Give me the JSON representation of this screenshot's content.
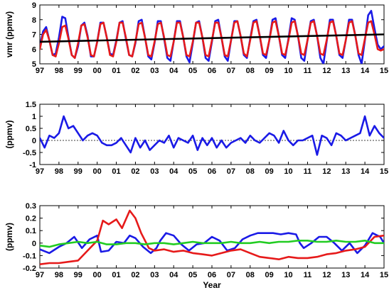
{
  "chart_data": [
    {
      "type": "line",
      "ylabel": "vmr (ppmv)",
      "xlabel": "",
      "xlim": [
        1997,
        2015
      ],
      "ylim": [
        5,
        9
      ],
      "yticks": [
        5,
        6,
        7,
        8,
        9
      ],
      "grid": false,
      "x_tick_labels": [
        "97",
        "98",
        "99",
        "00",
        "01",
        "02",
        "03",
        "04",
        "05",
        "06",
        "07",
        "08",
        "09",
        "10",
        "11",
        "12",
        "13",
        "14",
        "15"
      ],
      "series": [
        {
          "color": "#1a1ae6",
          "x": [
            1997.0,
            1997.17,
            1997.33,
            1997.5,
            1997.67,
            1997.83,
            1998.0,
            1998.17,
            1998.33,
            1998.5,
            1998.67,
            1998.83,
            1999.0,
            1999.17,
            1999.33,
            1999.5,
            1999.67,
            1999.83,
            2000.0,
            2000.17,
            2000.33,
            2000.5,
            2000.67,
            2000.83,
            2001.0,
            2001.17,
            2001.33,
            2001.5,
            2001.67,
            2001.83,
            2002.0,
            2002.17,
            2002.33,
            2002.5,
            2002.67,
            2002.83,
            2003.0,
            2003.17,
            2003.33,
            2003.5,
            2003.67,
            2003.83,
            2004.0,
            2004.17,
            2004.33,
            2004.5,
            2004.67,
            2004.83,
            2005.0,
            2005.17,
            2005.33,
            2005.5,
            2005.67,
            2005.83,
            2006.0,
            2006.17,
            2006.33,
            2006.5,
            2006.67,
            2006.83,
            2007.0,
            2007.17,
            2007.33,
            2007.5,
            2007.67,
            2007.83,
            2008.0,
            2008.17,
            2008.33,
            2008.5,
            2008.67,
            2008.83,
            2009.0,
            2009.17,
            2009.33,
            2009.5,
            2009.67,
            2009.83,
            2010.0,
            2010.17,
            2010.33,
            2010.5,
            2010.67,
            2010.83,
            2011.0,
            2011.17,
            2011.33,
            2011.5,
            2011.67,
            2011.83,
            2012.0,
            2012.17,
            2012.33,
            2012.5,
            2012.67,
            2012.83,
            2013.0,
            2013.17,
            2013.33,
            2013.5,
            2013.67,
            2013.83,
            2014.0,
            2014.17,
            2014.33,
            2014.5,
            2014.67,
            2014.83,
            2015.0
          ],
          "values": [
            6.2,
            7.2,
            7.5,
            6.6,
            5.6,
            5.7,
            6.8,
            8.2,
            8.1,
            6.8,
            5.6,
            5.4,
            6.2,
            7.6,
            7.8,
            6.9,
            5.5,
            5.5,
            6.5,
            7.8,
            7.8,
            6.8,
            5.7,
            5.6,
            6.6,
            7.8,
            7.9,
            6.7,
            5.6,
            5.5,
            6.4,
            7.9,
            8.0,
            6.8,
            5.5,
            5.3,
            6.4,
            7.9,
            7.9,
            6.7,
            5.4,
            5.2,
            6.5,
            7.9,
            7.9,
            6.8,
            5.5,
            5.1,
            6.4,
            7.8,
            7.9,
            6.8,
            5.4,
            5.2,
            6.5,
            7.9,
            8.0,
            6.8,
            5.5,
            5.2,
            6.6,
            7.9,
            7.9,
            6.9,
            5.6,
            5.4,
            6.7,
            7.9,
            8.0,
            6.9,
            5.6,
            5.4,
            6.6,
            8.0,
            8.1,
            6.9,
            5.6,
            5.4,
            6.7,
            8.1,
            8.0,
            6.9,
            5.4,
            5.2,
            6.6,
            7.9,
            8.0,
            6.9,
            5.4,
            5.0,
            6.5,
            8.0,
            8.0,
            6.9,
            5.6,
            5.4,
            6.6,
            8.0,
            8.0,
            6.9,
            5.6,
            5.0,
            6.6,
            8.3,
            8.6,
            7.4,
            6.3,
            6.0,
            6.2
          ]
        },
        {
          "color": "#e61a1a",
          "x": [
            1997.0,
            1997.17,
            1997.33,
            1997.5,
            1997.67,
            1997.83,
            1998.0,
            1998.17,
            1998.33,
            1998.5,
            1998.67,
            1998.83,
            1999.0,
            1999.17,
            1999.33,
            1999.5,
            1999.67,
            1999.83,
            2000.0,
            2000.17,
            2000.33,
            2000.5,
            2000.67,
            2000.83,
            2001.0,
            2001.17,
            2001.33,
            2001.5,
            2001.67,
            2001.83,
            2002.0,
            2002.17,
            2002.33,
            2002.5,
            2002.67,
            2002.83,
            2003.0,
            2003.17,
            2003.33,
            2003.5,
            2003.67,
            2003.83,
            2004.0,
            2004.17,
            2004.33,
            2004.5,
            2004.67,
            2004.83,
            2005.0,
            2005.17,
            2005.33,
            2005.5,
            2005.67,
            2005.83,
            2006.0,
            2006.17,
            2006.33,
            2006.5,
            2006.67,
            2006.83,
            2007.0,
            2007.17,
            2007.33,
            2007.5,
            2007.67,
            2007.83,
            2008.0,
            2008.17,
            2008.33,
            2008.5,
            2008.67,
            2008.83,
            2009.0,
            2009.17,
            2009.33,
            2009.5,
            2009.67,
            2009.83,
            2010.0,
            2010.17,
            2010.33,
            2010.5,
            2010.67,
            2010.83,
            2011.0,
            2011.17,
            2011.33,
            2011.5,
            2011.67,
            2011.83,
            2012.0,
            2012.17,
            2012.33,
            2012.5,
            2012.67,
            2012.83,
            2013.0,
            2013.17,
            2013.33,
            2013.5,
            2013.67,
            2013.83,
            2014.0,
            2014.17,
            2014.33,
            2014.5,
            2014.67,
            2014.83,
            2015.0
          ],
          "values": [
            6.0,
            7.0,
            7.3,
            6.6,
            5.6,
            5.5,
            6.4,
            7.5,
            7.6,
            6.7,
            5.6,
            5.4,
            6.4,
            7.6,
            7.7,
            6.8,
            5.6,
            5.5,
            6.5,
            7.7,
            7.8,
            6.8,
            5.6,
            5.5,
            6.5,
            7.8,
            7.8,
            6.8,
            5.6,
            5.5,
            6.5,
            7.7,
            7.8,
            6.8,
            5.6,
            5.5,
            6.5,
            7.7,
            7.8,
            6.8,
            5.6,
            5.5,
            6.5,
            7.8,
            7.8,
            6.8,
            5.6,
            5.5,
            6.5,
            7.8,
            7.8,
            6.8,
            5.6,
            5.5,
            6.6,
            7.8,
            7.8,
            6.8,
            5.6,
            5.5,
            6.6,
            7.8,
            7.9,
            6.9,
            5.7,
            5.5,
            6.6,
            7.8,
            7.9,
            6.9,
            5.7,
            5.6,
            6.6,
            7.8,
            7.9,
            6.9,
            5.7,
            5.6,
            6.6,
            7.8,
            7.9,
            6.9,
            5.7,
            5.6,
            6.6,
            7.8,
            7.9,
            6.9,
            5.7,
            5.6,
            6.6,
            7.8,
            7.9,
            6.9,
            5.7,
            5.6,
            6.6,
            7.8,
            7.9,
            6.9,
            5.7,
            5.6,
            6.7,
            7.8,
            7.9,
            7.0,
            6.0,
            5.9,
            6.0
          ]
        },
        {
          "color": "#000000",
          "x": [
            1997,
            2015
          ],
          "values": [
            6.5,
            7.0
          ]
        }
      ]
    },
    {
      "type": "line",
      "ylabel": "(ppmv)",
      "xlabel": "",
      "xlim": [
        1997,
        2015
      ],
      "ylim": [
        -1,
        1.5
      ],
      "yticks": [
        -1,
        -0.5,
        0,
        0.5,
        1,
        1.5
      ],
      "grid": false,
      "x_tick_labels": [
        "97",
        "98",
        "99",
        "00",
        "01",
        "02",
        "03",
        "04",
        "05",
        "06",
        "07",
        "08",
        "09",
        "10",
        "11",
        "12",
        "13",
        "14",
        "15"
      ],
      "zero_line": true,
      "series": [
        {
          "color": "#1a1ae6",
          "x": [
            1997.0,
            1997.25,
            1997.5,
            1997.75,
            1998.0,
            1998.25,
            1998.5,
            1998.75,
            1999.0,
            1999.25,
            1999.5,
            1999.75,
            2000.0,
            2000.25,
            2000.5,
            2000.75,
            2001.0,
            2001.25,
            2001.5,
            2001.75,
            2002.0,
            2002.25,
            2002.5,
            2002.75,
            2003.0,
            2003.25,
            2003.5,
            2003.75,
            2004.0,
            2004.25,
            2004.5,
            2004.75,
            2005.0,
            2005.25,
            2005.5,
            2005.75,
            2006.0,
            2006.25,
            2006.5,
            2006.75,
            2007.0,
            2007.25,
            2007.5,
            2007.75,
            2008.0,
            2008.25,
            2008.5,
            2008.75,
            2009.0,
            2009.25,
            2009.5,
            2009.75,
            2010.0,
            2010.25,
            2010.5,
            2010.75,
            2011.0,
            2011.25,
            2011.5,
            2011.75,
            2012.0,
            2012.25,
            2012.5,
            2012.75,
            2013.0,
            2013.25,
            2013.5,
            2013.75,
            2014.0,
            2014.25,
            2014.5,
            2014.75,
            2015.0
          ],
          "values": [
            0.1,
            -0.3,
            0.2,
            0.1,
            0.3,
            1.0,
            0.5,
            0.6,
            0.3,
            0.0,
            0.2,
            0.3,
            0.2,
            -0.1,
            -0.2,
            -0.2,
            -0.1,
            0.1,
            -0.2,
            -0.5,
            0.1,
            -0.3,
            0.0,
            -0.4,
            -0.2,
            0.0,
            -0.1,
            0.2,
            -0.3,
            0.1,
            0.0,
            -0.1,
            0.2,
            -0.4,
            0.1,
            -0.2,
            0.1,
            -0.3,
            0.0,
            -0.3,
            -0.1,
            0.0,
            0.1,
            -0.1,
            0.2,
            0.0,
            -0.1,
            0.1,
            0.3,
            0.2,
            -0.1,
            0.4,
            0.0,
            -0.2,
            0.0,
            0.0,
            0.1,
            0.2,
            -0.6,
            0.2,
            0.1,
            -0.2,
            0.3,
            0.2,
            0.0,
            0.1,
            0.2,
            0.3,
            1.0,
            0.2,
            0.6,
            0.3,
            0.1
          ]
        }
      ]
    },
    {
      "type": "line",
      "ylabel": "(ppmv)",
      "xlabel": "Year",
      "xlim": [
        1997,
        2015
      ],
      "ylim": [
        -0.2,
        0.3
      ],
      "yticks": [
        -0.2,
        -0.1,
        0,
        0.1,
        0.2,
        0.3
      ],
      "grid": false,
      "x_tick_labels": [
        "97",
        "98",
        "99",
        "00",
        "01",
        "02",
        "03",
        "04",
        "05",
        "06",
        "07",
        "08",
        "09",
        "10",
        "11",
        "12",
        "13",
        "14",
        "15"
      ],
      "series": [
        {
          "color": "#1a1ae6",
          "x": [
            1997.0,
            1997.5,
            1998.0,
            1998.4,
            1998.8,
            1999.2,
            1999.6,
            2000.0,
            2000.2,
            2000.6,
            2001.0,
            2001.4,
            2001.7,
            2002.0,
            2002.4,
            2002.8,
            2003.1,
            2003.3,
            2003.6,
            2004.0,
            2004.4,
            2004.8,
            2005.2,
            2005.6,
            2006.0,
            2006.4,
            2006.8,
            2007.2,
            2007.6,
            2008.0,
            2008.4,
            2008.8,
            2009.2,
            2009.6,
            2010.0,
            2010.4,
            2010.6,
            2010.8,
            2011.2,
            2011.6,
            2012.0,
            2012.4,
            2012.8,
            2013.2,
            2013.6,
            2014.0,
            2014.4,
            2014.8,
            2015.0
          ],
          "values": [
            -0.05,
            -0.08,
            -0.03,
            0.0,
            0.05,
            -0.04,
            0.03,
            0.06,
            -0.07,
            -0.06,
            0.01,
            0.0,
            0.06,
            0.04,
            -0.03,
            -0.08,
            -0.04,
            0.02,
            0.08,
            0.06,
            -0.01,
            -0.06,
            -0.01,
            0.0,
            0.05,
            0.02,
            -0.06,
            -0.04,
            0.03,
            0.06,
            0.08,
            0.08,
            0.08,
            0.07,
            0.08,
            0.07,
            0.0,
            -0.04,
            0.0,
            0.05,
            0.05,
            0.0,
            -0.06,
            0.0,
            -0.08,
            -0.02,
            0.08,
            0.05,
            0.0
          ]
        },
        {
          "color": "#e61a1a",
          "x": [
            1997.0,
            1997.5,
            1998.0,
            1998.5,
            1999.0,
            1999.5,
            2000.0,
            2000.3,
            2000.6,
            2001.0,
            2001.3,
            2001.7,
            2002.0,
            2002.3,
            2002.7,
            2003.0,
            2003.5,
            2004.0,
            2004.5,
            2005.0,
            2005.5,
            2006.0,
            2006.5,
            2007.0,
            2007.5,
            2008.0,
            2008.5,
            2009.0,
            2009.5,
            2010.0,
            2010.5,
            2011.0,
            2011.5,
            2012.0,
            2012.5,
            2013.0,
            2013.5,
            2014.0,
            2014.5,
            2015.0
          ],
          "values": [
            -0.17,
            -0.16,
            -0.16,
            -0.15,
            -0.14,
            -0.06,
            0.02,
            0.18,
            0.15,
            0.19,
            0.12,
            0.26,
            0.2,
            0.08,
            -0.04,
            -0.06,
            -0.05,
            -0.07,
            -0.06,
            -0.08,
            -0.09,
            -0.1,
            -0.08,
            -0.06,
            -0.05,
            -0.08,
            -0.11,
            -0.12,
            -0.13,
            -0.11,
            -0.12,
            -0.12,
            -0.11,
            -0.09,
            -0.08,
            -0.06,
            -0.05,
            -0.03,
            0.05,
            0.06
          ]
        },
        {
          "color": "#22cc22",
          "x": [
            1997.0,
            1997.5,
            1998.0,
            1998.5,
            1999.0,
            1999.5,
            2000.0,
            2000.5,
            2001.0,
            2001.5,
            2002.0,
            2002.5,
            2003.0,
            2003.5,
            2004.0,
            2004.5,
            2005.0,
            2005.5,
            2006.0,
            2006.5,
            2007.0,
            2007.5,
            2008.0,
            2008.5,
            2009.0,
            2009.5,
            2010.0,
            2010.5,
            2011.0,
            2011.5,
            2012.0,
            2012.5,
            2013.0,
            2013.5,
            2014.0,
            2014.5,
            2015.0
          ],
          "values": [
            -0.02,
            -0.03,
            -0.01,
            0.0,
            0.01,
            0.0,
            0.01,
            -0.01,
            -0.01,
            0.0,
            0.0,
            -0.01,
            0.0,
            0.0,
            -0.01,
            0.0,
            0.01,
            0.0,
            0.0,
            0.0,
            0.01,
            0.0,
            0.0,
            0.01,
            0.0,
            0.01,
            0.01,
            0.02,
            0.02,
            0.01,
            0.01,
            0.02,
            0.01,
            0.01,
            0.02,
            0.0,
            0.0
          ]
        }
      ]
    }
  ]
}
